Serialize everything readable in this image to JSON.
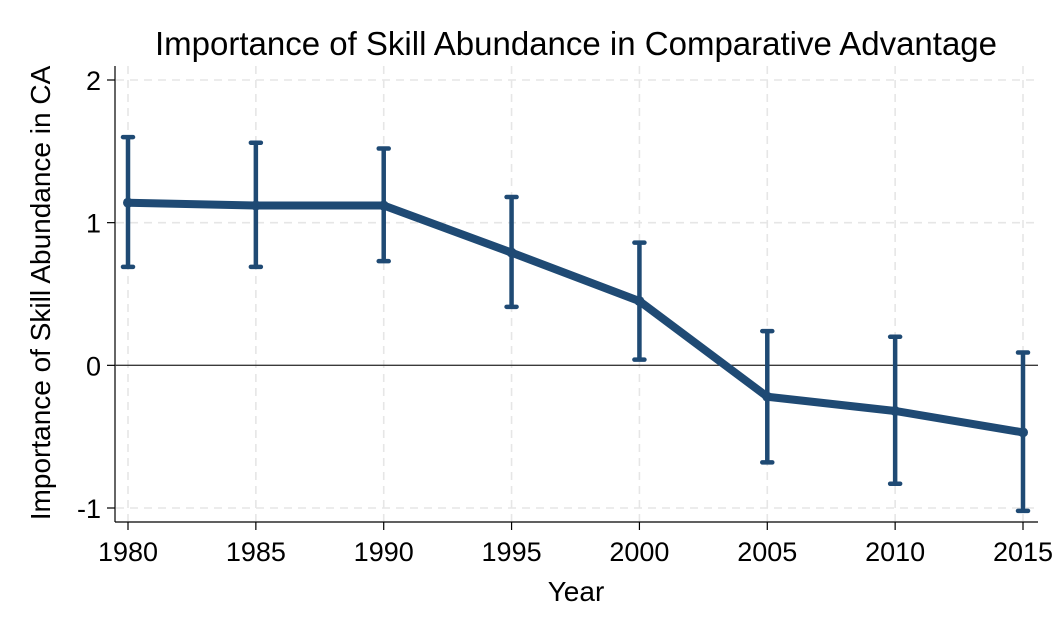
{
  "chart_data": {
    "type": "line",
    "title": "Importance of Skill Abundance in Comparative Advantage",
    "xlabel": "Year",
    "ylabel": "Importance of Skill Abundance in CA",
    "x": [
      1980,
      1985,
      1990,
      1995,
      2000,
      2005,
      2010,
      2015
    ],
    "series": [
      {
        "values": [
          1.14,
          1.12,
          1.12,
          0.79,
          0.45,
          -0.22,
          -0.32,
          -0.47
        ],
        "ci_low": [
          0.69,
          0.69,
          0.73,
          0.41,
          0.04,
          -0.68,
          -0.83,
          -1.02
        ],
        "ci_high": [
          1.6,
          1.56,
          1.52,
          1.18,
          0.86,
          0.24,
          0.2,
          0.09
        ],
        "color": "#1f4a74"
      }
    ],
    "xlim": [
      1980,
      2015
    ],
    "ylim": [
      -1,
      2
    ],
    "xticks": [
      "1980",
      "1985",
      "1990",
      "1995",
      "2000",
      "2005",
      "2010",
      "2015"
    ],
    "yticks": [
      "-1",
      "0",
      "1",
      "2"
    ],
    "reference_line": 0,
    "grid": true,
    "legend": "none"
  }
}
